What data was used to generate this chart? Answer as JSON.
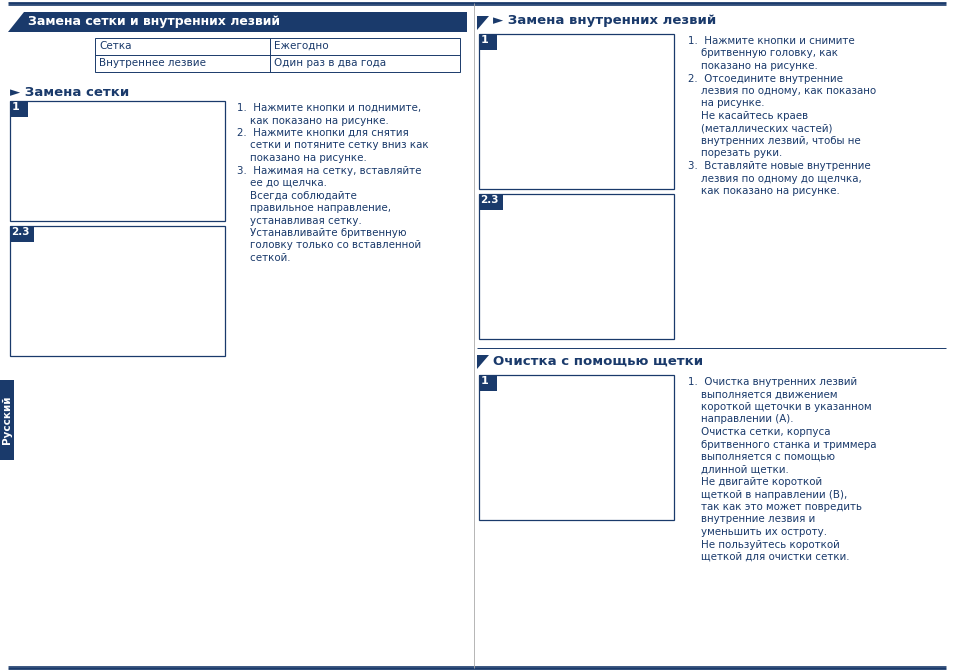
{
  "bg_color": "#ffffff",
  "tc": "#1a3a6b",
  "section1_title": "Замена сетки и внутренних лезвий",
  "table_rows": [
    [
      "Сетка",
      "Ежегодно"
    ],
    [
      "Внутреннее лезвие",
      "Один раз в два года"
    ]
  ],
  "sub1_title": "► Замена сетки",
  "sub1_steps": [
    "1.  Нажмите кнопки и поднимите,",
    "    как показано на рисунке.",
    "2.  Нажмите кнопки для снятия",
    "    сетки и потяните сетку вниз как",
    "    показано на рисунке.",
    "3.  Нажимая на сетку, вставляйте",
    "    ее до щелчка.",
    "    Всегда соблюдайте",
    "    правильное направление,",
    "    устанавливая сетку.",
    "    Устанавливайте бритвенную",
    "    головку только со вставленной",
    "    сеткой."
  ],
  "sec2_title": "► Замена внутренних лезвий",
  "sec2_steps": [
    "1.  Нажмите кнопки и снимите",
    "    бритвенную головку, как",
    "    показано на рисунке.",
    "2.  Отсоедините внутренние",
    "    лезвия по одному, как показано",
    "    на рисунке.",
    "    Не касайтесь краев",
    "    (металлических частей)",
    "    внутренних лезвий, чтобы не",
    "    порезать руки.",
    "3.  Вставляйте новые внутренние",
    "    лезвия по одному до щелчка,",
    "    как показано на рисунке."
  ],
  "sec3_title": "Очистка с помощью щетки",
  "sec3_steps": [
    "1.  Очистка внутренних лезвий",
    "    выполняется движением",
    "    короткой щеточки в указанном",
    "    направлении (А).",
    "    Очистка сетки, корпуса",
    "    бритвенного станка и триммера",
    "    выполняется с помощью",
    "    длинной щетки.",
    "    Не двигайте короткой",
    "    щеткой в направлении (В),",
    "    так как это может повредить",
    "    внутренние лезвия и",
    "    уменьшить их остроту.",
    "    Не пользуйтесь короткой",
    "    щеткой для очистки сетки."
  ],
  "side_label": "Русский"
}
